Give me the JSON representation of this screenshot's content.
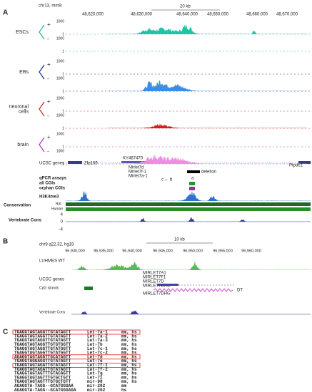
{
  "panel_a": {
    "label": "A",
    "assembly": "chr13, mm9:",
    "scale": "20 kb",
    "coords": [
      "48,620,000",
      "48,630,000",
      "48,640,000",
      "48,650,000",
      "48,660,000",
      "48,670,000"
    ],
    "samples": [
      {
        "lines": [
          "ESCs"
        ],
        "plus": "+",
        "minus": "-",
        "max": "1000",
        "min": "1"
      },
      {
        "lines": [
          "EBs"
        ],
        "plus": "+",
        "minus": "-",
        "max": "1000",
        "min": "1"
      },
      {
        "lines": [
          "neuronal",
          "cells"
        ],
        "plus": "+",
        "minus": "-",
        "max": "1000",
        "min": "1"
      },
      {
        "lines": [
          "brain"
        ],
        "plus": "+",
        "minus": "-",
        "max": "1000",
        "min": "1"
      }
    ],
    "genes_label": "UCSC genes",
    "genes": [
      "Zfp169",
      "KY467470",
      "Mirlet7d",
      "Mirlet7f-1",
      "Mirlet7a-1",
      "Ptpdc1"
    ],
    "sites": [
      "c",
      "b",
      "a"
    ],
    "deletion": "deletion",
    "qpcr": "qPCR assays",
    "all_cgis": "all CGIs",
    "orphan_cgis": "orphan CGIs",
    "h3k4me3": "H3K4me3",
    "conservation": "Conservation",
    "rat": "Rat",
    "human": "Human",
    "vert_cons": "Vertebrate Cons",
    "cons_ticks": [
      "4",
      "0",
      "-4"
    ]
  },
  "panel_b": {
    "label": "B",
    "assembly": "chr9 q22.32, hg19",
    "scale": "10 kb",
    "coords": [
      "96,930,000",
      "96,935,000",
      "96,940,000",
      "96,945,000",
      "96,950,000",
      "96,955,000",
      "96,960,000"
    ],
    "luhmes": "LUHMES WT",
    "genes_label": "UCSC genes",
    "genes": [
      "MIRLET7A1",
      "MIRLET7F1",
      "MIRLET7D",
      "MIRLET7DHG",
      "MIRLET7DHG"
    ],
    "cpg": "CpG islands",
    "vert_cons": "Vertebrate Cons",
    "dt": "DT"
  },
  "panel_c": {
    "label": "C",
    "rows": [
      [
        "TGAGGTAGTAGGTTGTATAGTT",
        "Let-7a-1",
        "mm, hs"
      ],
      [
        "TGAGGTAGTAGGTTGTATAGTT",
        "Let-7a-2",
        "mm, hs"
      ],
      [
        "TGAGGTAGTAGGTTGTATAGTT",
        "Let-7a-3",
        "mm, hs"
      ],
      [
        "TGAGGTAGTAGGTTGTGTGGTT",
        "Let-7b",
        "mm, hs"
      ],
      [
        "TGAGGTAGTAGGTTGTATGGTT",
        "Let-7c-1",
        "mm, hs"
      ],
      [
        "TGAGGTAGTAGGTTGTATGGTT",
        "Let-7c-2",
        "mm, hs"
      ],
      [
        "AGAGGTAGTAGGTTGCATAGTT",
        "Let-7d",
        "mm, hs"
      ],
      [
        "TGAGGTAGGAGGTTGTATAGTT",
        "Let-7e",
        "mm, hs"
      ],
      [
        "TGAGGTAGTAGATTGTATAGTT",
        "Let-7f-1",
        "mm, hs"
      ],
      [
        "TGAGGTAGTAGATTGTATAGTT",
        "Let-7f-2",
        "mm, hs"
      ],
      [
        "TGAGGTAGTAGTTTGTACAGTT",
        "Let-7g",
        "mm, hs"
      ],
      [
        "TGAGGTAGTAGTTTGTGCTGTT",
        "Let-7i",
        "mm, hs"
      ],
      [
        "TGAGGTAGTAGTTTGTGCTGTT",
        "mir-98",
        "mm, hs"
      ],
      [
        "AGAGGTA-TAGG--GCATGGGAA",
        "mir-202",
        "mm"
      ],
      [
        "AGAGGTA-TAGG--GCATGGGAGA",
        "mir-202",
        "hs"
      ]
    ]
  }
}
